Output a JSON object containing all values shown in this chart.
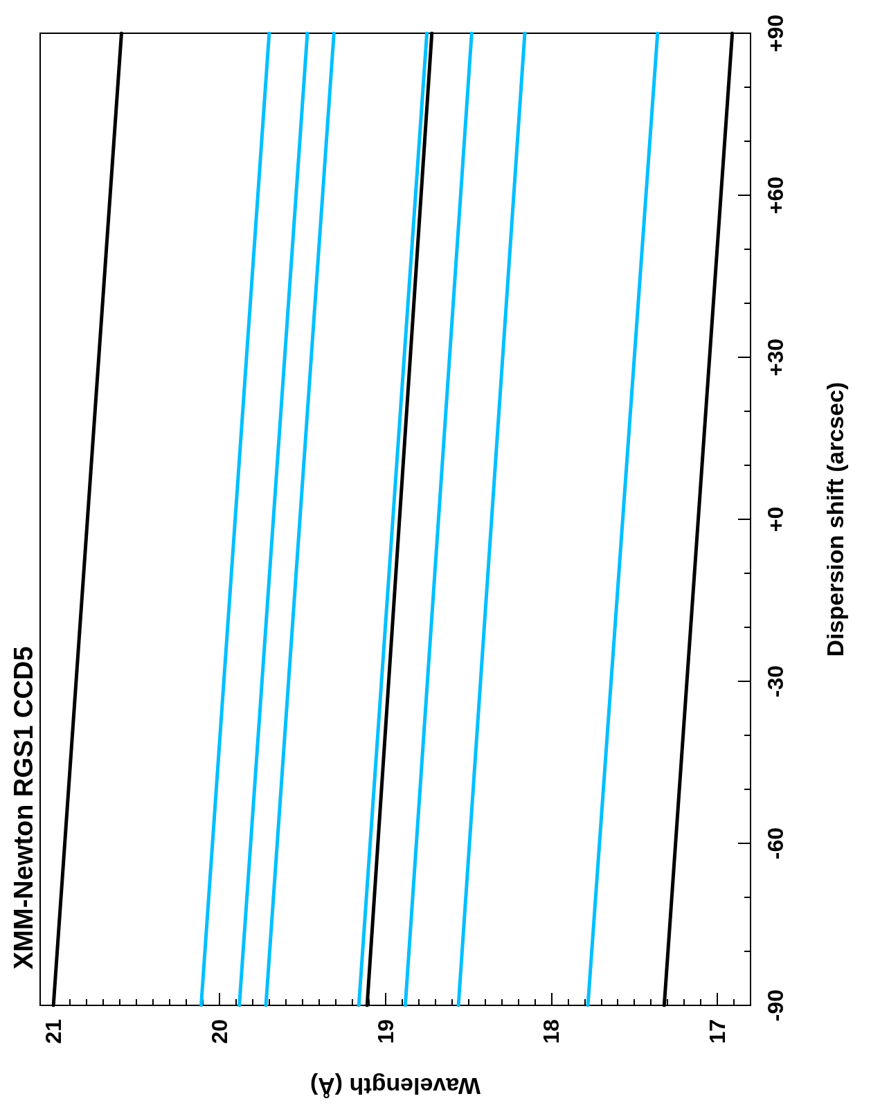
{
  "chart_data": {
    "type": "line",
    "title": "XMM-Newton RGS1 CCD5",
    "xlabel": "Wavelength (Å)",
    "ylabel": "Dispersion shift (arcsec)",
    "xlim": [
      21.08,
      16.8
    ],
    "xticks": [
      21,
      20,
      19,
      18,
      17
    ],
    "ylim": [
      -90,
      90
    ],
    "yticks": [
      -90,
      -60,
      -30,
      {
        "value": 0,
        "label": "+0"
      },
      {
        "value": 30,
        "label": "+30"
      },
      {
        "value": 60,
        "label": "+60"
      },
      {
        "value": 90,
        "label": "+90"
      }
    ],
    "grid": false,
    "legend": false,
    "marker": "none",
    "line_style": "solid",
    "series": [
      {
        "color": "#000000",
        "x": [
          21.0,
          20.59
        ],
        "values": [
          -90,
          90
        ]
      },
      {
        "color": "#00bfff",
        "x": [
          20.11,
          19.7
        ],
        "values": [
          -90,
          90
        ]
      },
      {
        "color": "#00bfff",
        "x": [
          19.88,
          19.47
        ],
        "values": [
          -90,
          90
        ]
      },
      {
        "color": "#00bfff",
        "x": [
          19.72,
          19.31
        ],
        "values": [
          -90,
          90
        ]
      },
      {
        "color": "#00bfff",
        "x": [
          19.16,
          18.75
        ],
        "values": [
          -90,
          90
        ]
      },
      {
        "color": "#000000",
        "x": [
          19.11,
          18.72
        ],
        "values": [
          -90,
          90
        ]
      },
      {
        "color": "#00bfff",
        "x": [
          18.88,
          18.48
        ],
        "values": [
          -90,
          90
        ]
      },
      {
        "color": "#00bfff",
        "x": [
          18.56,
          18.16
        ],
        "values": [
          -90,
          90
        ]
      },
      {
        "color": "#00bfff",
        "x": [
          17.78,
          17.36
        ],
        "values": [
          -90,
          90
        ]
      },
      {
        "color": "#000000",
        "x": [
          17.32,
          16.91
        ],
        "values": [
          -90,
          90
        ]
      }
    ]
  }
}
